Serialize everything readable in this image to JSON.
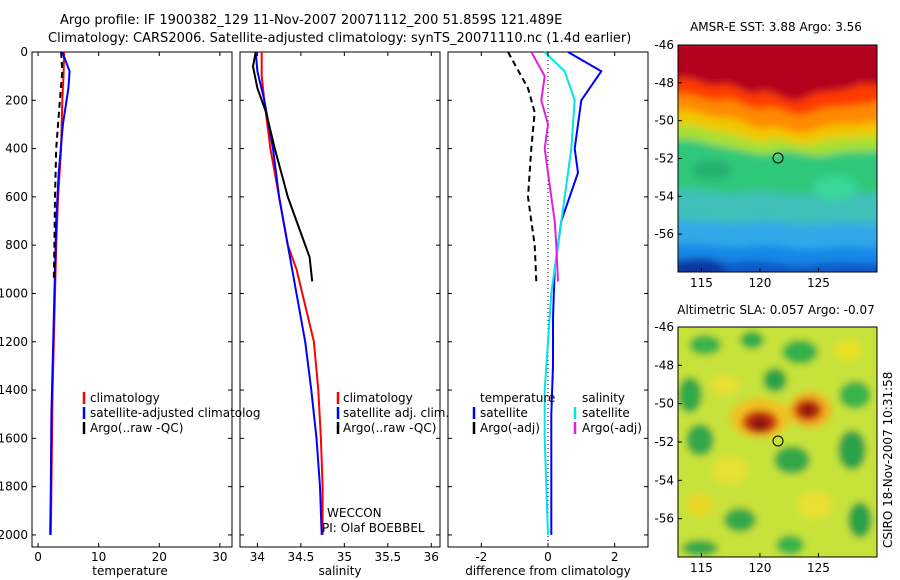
{
  "header": {
    "line1": "Argo profile: IF 1900382_129 11-Nov-2007 20071112_200 51.859S 121.489E",
    "line2": "Climatology: CARS2006. Satellite-adjusted climatology: synTS_20071110.nc (1.4d earlier)"
  },
  "side_label": "CSIRO 18-Nov-2007 10:31:58",
  "colors": {
    "climatology": "#ff0000",
    "satellite": "#0000ff",
    "argo": "#000000",
    "sat_salinity": "#00e5e5",
    "argo_salinity": "#e020e0"
  },
  "chart_data": [
    {
      "type": "line",
      "name": "temperature-panel",
      "xlabel": "temperature",
      "ylabel": "",
      "xlim": [
        -1,
        32
      ],
      "ylim": [
        2050,
        0
      ],
      "xticks": [
        "0",
        "10",
        "20",
        "30"
      ],
      "yticks": [
        "0",
        "200",
        "400",
        "600",
        "800",
        "1000",
        "1200",
        "1400",
        "1600",
        "1800",
        "2000"
      ],
      "legend": [
        "climatology",
        "satellite-adjusted climatolog",
        "Argo(..raw -QC)"
      ],
      "series": [
        {
          "name": "climatology",
          "color": "red",
          "x": [
            4.3,
            4.2,
            4.0,
            3.8,
            3.3,
            3.0,
            2.8,
            2.6,
            2.4,
            2.3,
            2.2,
            2.1
          ],
          "y": [
            0,
            100,
            200,
            400,
            600,
            800,
            1000,
            1200,
            1400,
            1600,
            1800,
            2000
          ]
        },
        {
          "name": "satellite-adjusted climatolog",
          "color": "blue",
          "x": [
            4.0,
            5.2,
            5.0,
            4.1,
            3.4,
            3.0,
            2.8,
            2.6,
            2.4,
            2.2,
            2.1,
            2.0
          ],
          "y": [
            0,
            80,
            150,
            300,
            500,
            700,
            900,
            1100,
            1300,
            1500,
            1800,
            2000
          ]
        },
        {
          "name": "Argo(..raw -QC)",
          "color": "black",
          "dash": true,
          "x": [
            3.8,
            4.0,
            3.6,
            3.0,
            2.8,
            2.7,
            2.6
          ],
          "y": [
            0,
            80,
            200,
            400,
            600,
            800,
            950
          ]
        }
      ]
    },
    {
      "type": "line",
      "name": "salinity-panel",
      "xlabel": "salinity",
      "xlim": [
        33.8,
        36.1
      ],
      "ylim": [
        2050,
        0
      ],
      "xticks": [
        "34",
        "34.5",
        "35",
        "35.5",
        "36"
      ],
      "legend": [
        "climatology",
        "satellite adj. clim.",
        "Argo(..raw -QC)"
      ],
      "annotations": [
        "WECCON",
        "PI: Olaf BOEBBEL"
      ],
      "series": [
        {
          "name": "climatology",
          "color": "red",
          "x": [
            34.05,
            34.05,
            34.08,
            34.15,
            34.25,
            34.35,
            34.45,
            34.55,
            34.65,
            34.7,
            34.73,
            34.75,
            34.75
          ],
          "y": [
            0,
            100,
            200,
            400,
            600,
            800,
            900,
            1050,
            1200,
            1400,
            1600,
            1800,
            2000
          ]
        },
        {
          "name": "satellite adj. clim.",
          "color": "blue",
          "x": [
            33.98,
            34.0,
            34.08,
            34.18,
            34.25,
            34.35,
            34.45,
            34.55,
            34.62,
            34.68,
            34.72,
            34.74
          ],
          "y": [
            0,
            80,
            200,
            400,
            600,
            800,
            1000,
            1200,
            1400,
            1600,
            1800,
            2000
          ]
        },
        {
          "name": "Argo(..raw -QC)",
          "color": "black",
          "x": [
            33.98,
            33.95,
            34.0,
            34.1,
            34.2,
            34.35,
            34.5,
            34.6,
            34.63
          ],
          "y": [
            0,
            60,
            150,
            250,
            400,
            600,
            750,
            850,
            950
          ]
        }
      ]
    },
    {
      "type": "line",
      "name": "difference-panel",
      "xlabel": "difference from climatology",
      "xlim": [
        -3,
        3
      ],
      "ylim": [
        2050,
        0
      ],
      "xticks": [
        "-2",
        "0",
        "2"
      ],
      "legend": [
        "temperature",
        "satellite",
        "Argo(-adj)",
        "salinity",
        "satellite",
        "Argo(-adj)"
      ],
      "series": [
        {
          "name": "temperature satellite",
          "color": "blue",
          "x": [
            0.6,
            1.6,
            1.5,
            1.0,
            0.9,
            0.8,
            0.9,
            0.4,
            0.2,
            0.15,
            0.15,
            0.1,
            0.1,
            0.1
          ],
          "y": [
            0,
            80,
            100,
            200,
            300,
            400,
            500,
            700,
            900,
            1100,
            1300,
            1500,
            1800,
            2000
          ]
        },
        {
          "name": "temperature Argo(-adj)",
          "color": "black",
          "dash": true,
          "x": [
            -1.2,
            -0.6,
            -0.4,
            -0.5,
            -0.6,
            -0.5,
            -0.4,
            -0.35
          ],
          "y": [
            0,
            150,
            250,
            400,
            600,
            700,
            800,
            950
          ]
        },
        {
          "name": "salinity satellite",
          "color": "cyan",
          "x": [
            -0.1,
            0.5,
            0.8,
            0.7,
            0.5,
            0.3,
            0.1,
            0.0,
            -0.1,
            -0.1,
            -0.05,
            0.0
          ],
          "y": [
            0,
            80,
            200,
            400,
            600,
            800,
            1000,
            1200,
            1400,
            1600,
            1800,
            2000
          ]
        },
        {
          "name": "salinity Argo(-adj)",
          "color": "magenta",
          "x": [
            -0.5,
            -0.1,
            -0.2,
            0.0,
            -0.1,
            0.0,
            0.1,
            0.2,
            0.25,
            0.3
          ],
          "y": [
            0,
            100,
            200,
            300,
            400,
            500,
            600,
            700,
            800,
            950
          ]
        }
      ]
    },
    {
      "type": "heatmap",
      "name": "sst-map",
      "title": "AMSR-E SST: 3.88 Argo: 3.56",
      "xlim": [
        113,
        130
      ],
      "ylim": [
        -58,
        -46
      ],
      "xticks": [
        "115",
        "120",
        "125"
      ],
      "yticks": [
        "-46",
        "-48",
        "-50",
        "-52",
        "-54",
        "-56"
      ],
      "marker": {
        "lon": 121.489,
        "lat": -51.859
      }
    },
    {
      "type": "heatmap",
      "name": "sla-map",
      "title": "Altimetric SLA: 0.057 Argo: -0.07",
      "xlim": [
        113,
        130
      ],
      "ylim": [
        -58,
        -46
      ],
      "xticks": [
        "115",
        "120",
        "125"
      ],
      "yticks": [
        "-46",
        "-48",
        "-50",
        "-52",
        "-54",
        "-56"
      ],
      "marker": {
        "lon": 121.489,
        "lat": -51.859
      }
    }
  ]
}
